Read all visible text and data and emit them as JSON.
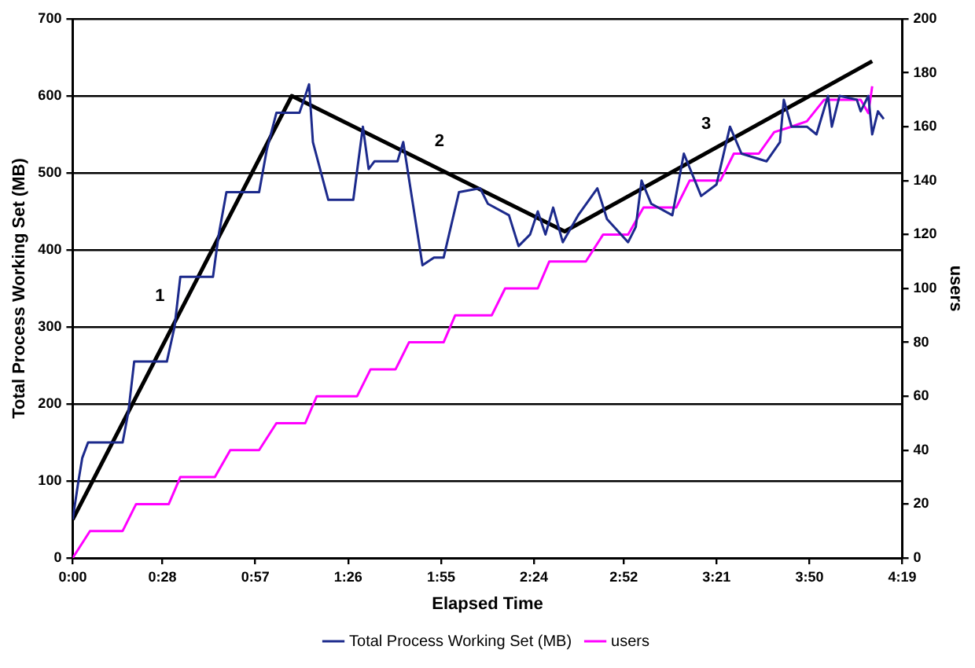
{
  "chart_data": {
    "type": "line",
    "xlabel": "Elapsed Time",
    "ylabel": "Total Process Working Set (MB)",
    "y2label": "users",
    "xlim": [
      0,
      4.3167
    ],
    "xticks": [
      {
        "value": 0,
        "label": "0:00"
      },
      {
        "value": 0.4667,
        "label": "0:28"
      },
      {
        "value": 0.95,
        "label": "0:57"
      },
      {
        "value": 1.4333,
        "label": "1:26"
      },
      {
        "value": 1.9167,
        "label": "1:55"
      },
      {
        "value": 2.4,
        "label": "2:24"
      },
      {
        "value": 2.8667,
        "label": "2:52"
      },
      {
        "value": 3.35,
        "label": "3:21"
      },
      {
        "value": 3.8333,
        "label": "3:50"
      },
      {
        "value": 4.3167,
        "label": "4:19"
      }
    ],
    "ylim": [
      0,
      700
    ],
    "yticks": [
      0,
      100,
      200,
      300,
      400,
      500,
      600,
      700
    ],
    "y2lim": [
      0,
      200
    ],
    "y2ticks": [
      0,
      20,
      40,
      60,
      80,
      100,
      120,
      140,
      160,
      180,
      200
    ],
    "grid": "y",
    "legend": "bottom",
    "marker": "none",
    "line_style": "solid",
    "series": [
      {
        "name": "Total Process Working Set (MB)",
        "color": "#1c2a8c",
        "x": [
          0,
          0.03,
          0.05,
          0.08,
          0.26,
          0.29,
          0.32,
          0.49,
          0.53,
          0.56,
          0.73,
          0.76,
          0.8,
          0.97,
          1.01,
          1.06,
          1.18,
          1.21,
          1.23,
          1.25,
          1.33,
          1.46,
          1.51,
          1.54,
          1.57,
          1.69,
          1.72,
          1.82,
          1.88,
          1.93,
          2.01,
          2.12,
          2.16,
          2.27,
          2.32,
          2.38,
          2.42,
          2.46,
          2.5,
          2.55,
          2.63,
          2.73,
          2.78,
          2.89,
          2.93,
          2.96,
          3.01,
          3.12,
          3.18,
          3.27,
          3.35,
          3.42,
          3.48,
          3.61,
          3.68,
          3.7,
          3.74,
          3.82,
          3.87,
          3.93,
          3.95,
          3.99,
          4.08,
          4.1,
          4.14,
          4.16,
          4.19,
          4.22
        ],
        "values": [
          50,
          100,
          130,
          150,
          150,
          190,
          255,
          255,
          300,
          365,
          365,
          420,
          475,
          475,
          530,
          578,
          578,
          600,
          615,
          540,
          465,
          465,
          560,
          505,
          515,
          515,
          540,
          380,
          390,
          390,
          475,
          480,
          460,
          445,
          405,
          420,
          450,
          420,
          455,
          410,
          445,
          480,
          440,
          410,
          430,
          490,
          460,
          445,
          525,
          470,
          485,
          560,
          525,
          515,
          540,
          595,
          560,
          560,
          550,
          600,
          560,
          600,
          595,
          580,
          600,
          550,
          580,
          570
        ]
      },
      {
        "name": "users",
        "color": "#ff00ff",
        "axis": "y2",
        "x": [
          0,
          0.09,
          0.26,
          0.33,
          0.5,
          0.56,
          0.74,
          0.82,
          0.97,
          1.06,
          1.21,
          1.27,
          1.48,
          1.55,
          1.68,
          1.75,
          1.93,
          1.99,
          2.18,
          2.25,
          2.42,
          2.48,
          2.67,
          2.76,
          2.89,
          2.97,
          3.14,
          3.21,
          3.37,
          3.44,
          3.57,
          3.65,
          3.74,
          3.82,
          3.91,
          4.1,
          4.14,
          4.16
        ],
        "values": [
          0,
          10,
          10,
          20,
          20,
          30,
          30,
          40,
          40,
          50,
          50,
          60,
          60,
          70,
          70,
          80,
          80,
          90,
          90,
          100,
          100,
          110,
          110,
          120,
          120,
          130,
          130,
          140,
          140,
          150,
          150,
          158,
          160,
          162,
          170,
          170,
          165,
          175
        ]
      },
      {
        "color": "#000000",
        "x": [
          0,
          1.14,
          2.56,
          4.16
        ],
        "values": [
          50,
          600,
          424,
          645
        ]
      }
    ],
    "annotations": [
      "1",
      "2",
      "3"
    ]
  }
}
